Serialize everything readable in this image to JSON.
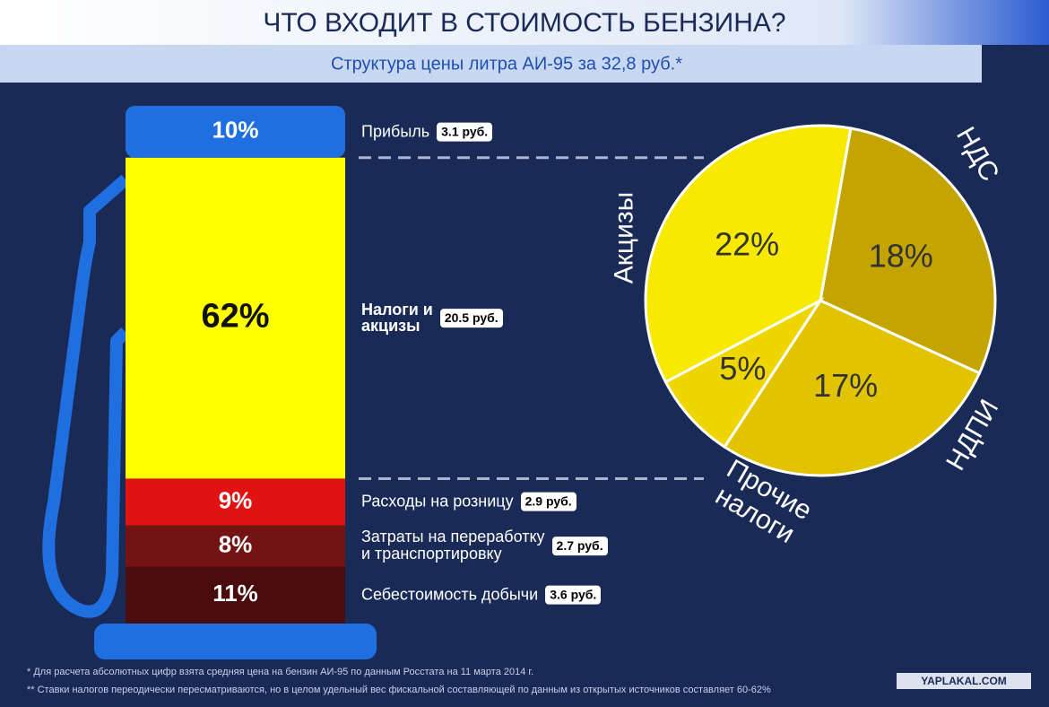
{
  "title": "ЧТО ВХОДИТ В СТОИМОСТЬ БЕНЗИНА?",
  "subtitle": "Структура цены литра АИ-95 за 32,8 руб.*",
  "chart_data": [
    {
      "type": "bar",
      "stacked": true,
      "series": [
        {
          "name": "Себестоимость добычи",
          "color": "#4a0c0c",
          "values": [
            11
          ],
          "value_labels": [
            "11%"
          ],
          "price_label": "3.6 руб."
        },
        {
          "name": "Затраты на переработку\nи транспортировку",
          "color": "#741313",
          "values": [
            8
          ],
          "value_labels": [
            "8%"
          ],
          "price_label": "2.7 руб."
        },
        {
          "name": "Расходы на розницу",
          "color": "#e01212",
          "values": [
            9
          ],
          "value_labels": [
            "9%"
          ],
          "price_label": "2.9 руб."
        },
        {
          "name": "Налоги и\nакцизы",
          "color": "#ffff00",
          "values": [
            62
          ],
          "value_labels": [
            "62%"
          ],
          "price_label": "20.5 руб."
        },
        {
          "name": "Прибыль",
          "color": "#1f6fe0",
          "values": [
            10
          ],
          "value_labels": [
            "10%"
          ],
          "price_label": "3.1 руб."
        }
      ]
    },
    {
      "type": "pie",
      "categories": [
        "НДС",
        "НДПИ",
        "Прочие\nналоги",
        "Акцизы"
      ],
      "values": [
        18,
        17,
        5,
        22
      ],
      "value_labels": [
        "18%",
        "17%",
        "5%",
        "22%"
      ],
      "colors": [
        "#c4a400",
        "#e2c300",
        "#efd600",
        "#f7ea00"
      ]
    }
  ],
  "notes": [
    "* Для расчета абсолютных цифр взята средняя цена на бензин АИ-95 по данным Росстата на 11 марта 2014 г.",
    "** Ставки налогов переодически пересматриваются, но в целом удельный вес фискальной составляющей по данным из открытых источников составляет 60-62%"
  ],
  "watermark": "YAPLAKAL.COM"
}
